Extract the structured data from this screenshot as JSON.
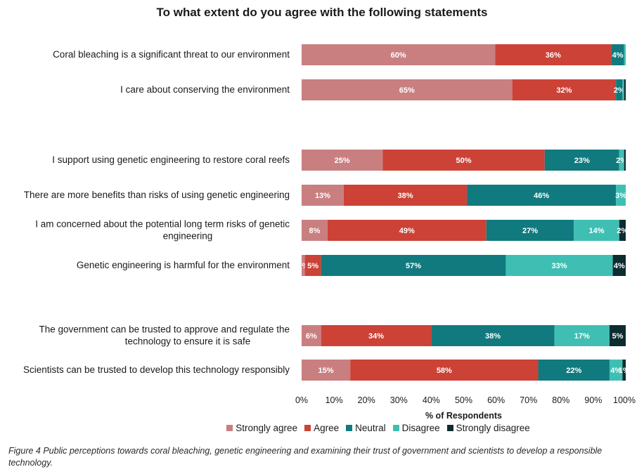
{
  "chart_data": {
    "type": "bar",
    "orientation": "horizontal-stacked",
    "title": "To what extent do you agree with the following statements",
    "xlabel": "% of Respondents",
    "xlim": [
      0,
      100
    ],
    "x_ticks": [
      "0%",
      "10%",
      "20%",
      "30%",
      "40%",
      "50%",
      "60%",
      "70%",
      "80%",
      "90%",
      "100%"
    ],
    "legend_position": "bottom",
    "series": [
      {
        "name": "Strongly agree",
        "color": "#c97f80"
      },
      {
        "name": "Agree",
        "color": "#cc4236"
      },
      {
        "name": "Neutral",
        "color": "#107a7f"
      },
      {
        "name": "Disagree",
        "color": "#3fbfb3"
      },
      {
        "name": "Strongly disagree",
        "color": "#0c2c2f"
      }
    ],
    "categories": [
      {
        "label": [
          "Coral bleaching is a significant threat to our environment"
        ],
        "values": [
          60,
          36,
          4,
          0.5,
          0
        ],
        "labels": [
          "60%",
          "36%",
          "4%",
          "",
          ""
        ]
      },
      {
        "label": [
          "I care about conserving the environment"
        ],
        "values": [
          65,
          32,
          2,
          0.5,
          0.5
        ],
        "labels": [
          "65%",
          "32%",
          "2%",
          "",
          ""
        ]
      },
      {
        "label": [
          "I support using genetic engineering to restore coral reefs"
        ],
        "values": [
          25,
          50,
          23,
          1.5,
          0.5
        ],
        "labels": [
          "25%",
          "50%",
          "23%",
          "2%",
          ""
        ]
      },
      {
        "label": [
          "There are more benefits than risks of using genetic engineering"
        ],
        "values": [
          13,
          38,
          46,
          3,
          0
        ],
        "labels": [
          "13%",
          "38%",
          "46%",
          "3%",
          ""
        ]
      },
      {
        "label": [
          "I am concerned about the potential long term risks of genetic",
          "engineering"
        ],
        "values": [
          8,
          49,
          27,
          14,
          2
        ],
        "labels": [
          "8%",
          "49%",
          "27%",
          "14%",
          "2%"
        ]
      },
      {
        "label": [
          "Genetic engineering is harmful for the environment"
        ],
        "values": [
          1,
          5,
          57,
          33,
          4
        ],
        "labels": [
          "1%",
          "5%",
          "57%",
          "33%",
          "4%"
        ]
      },
      {
        "label": [
          "The government can be trusted to approve and regulate the",
          "technology to ensure it is safe"
        ],
        "values": [
          6,
          34,
          38,
          17,
          5
        ],
        "labels": [
          "6%",
          "34%",
          "38%",
          "17%",
          "5%"
        ]
      },
      {
        "label": [
          "Scientists can be trusted to develop this technology responsibly"
        ],
        "values": [
          15,
          58,
          22,
          4,
          1
        ],
        "labels": [
          "15%",
          "58%",
          "22%",
          "4%",
          "1%"
        ]
      }
    ]
  },
  "caption": "Figure 4 Public perceptions towards coral bleaching, genetic engineering and examining their trust of government and scientists to develop a responsible technology."
}
